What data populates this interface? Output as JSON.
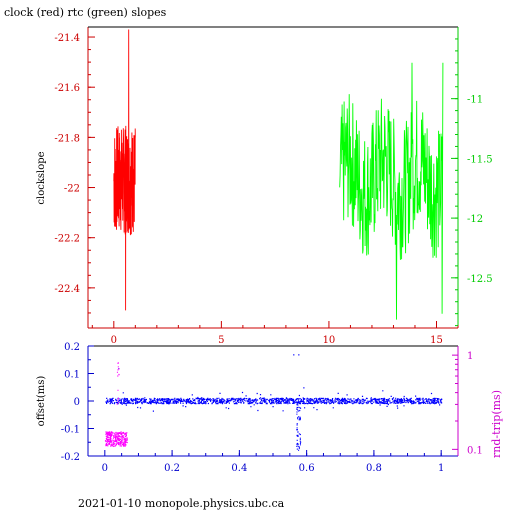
{
  "title": "clock (red) rtc (green) slopes",
  "footer": "2021-01-10  monopole.physics.ubc.ca",
  "chart_data": [
    {
      "type": "line",
      "ylabel": "clockslope",
      "xlim": [
        -1.2,
        16
      ],
      "x_ticks": [
        "0",
        "5",
        "10",
        "15"
      ],
      "x_tick_values": [
        0,
        5,
        10,
        15
      ],
      "y_left": {
        "lim": [
          -22.56,
          -21.36
        ],
        "ticks": [
          "-21.4",
          "-21.6",
          "-21.8",
          "-22",
          "-22.2",
          "-22.4"
        ],
        "tick_values": [
          -21.4,
          -21.6,
          -21.8,
          -22,
          -22.2,
          -22.4
        ],
        "color": "#cc0000"
      },
      "y_right": {
        "lim": [
          -12.92,
          -10.4
        ],
        "ticks": [
          "-11",
          "-11.5",
          "-12",
          "-12.5"
        ],
        "tick_values": [
          -11,
          -11.5,
          -12,
          -12.5
        ],
        "color": "#00cc00"
      },
      "series": [
        {
          "axis": "left",
          "color": "#ff0000",
          "x_range": [
            0.0,
            1.0
          ],
          "y_center": -21.97,
          "y_spread": 0.22,
          "y_min": -22.49,
          "y_max": -21.37
        },
        {
          "axis": "right",
          "color": "#00ff00",
          "x_range": [
            10.5,
            15.3
          ],
          "y_center": -11.65,
          "y_spread": 0.55,
          "y_min": -12.85,
          "y_max": -10.7
        }
      ]
    },
    {
      "type": "scatter",
      "ylabel": "offset(ms)",
      "y2label": "rnd-trip(ms)",
      "xlim": [
        -0.05,
        1.05
      ],
      "x_ticks": [
        "0",
        "0.2",
        "0.4",
        "0.6",
        "0.8",
        "1"
      ],
      "x_tick_values": [
        0,
        0.2,
        0.4,
        0.6,
        0.8,
        1
      ],
      "y_left": {
        "lim": [
          -0.2,
          0.2
        ],
        "ticks": [
          "0.2",
          "0.1",
          "0",
          "-0.1",
          "-0.2"
        ],
        "tick_values": [
          0.2,
          0.1,
          0,
          -0.1,
          -0.2
        ],
        "color": "#0000cc"
      },
      "y_right": {
        "lim": [
          0.085,
          1.25
        ],
        "scale": "log",
        "ticks": [
          "1",
          "0.1"
        ],
        "tick_values": [
          1,
          0.1
        ],
        "color": "#cc00cc"
      },
      "series": [
        {
          "axis": "left",
          "color": "#0000ff",
          "x_range": [
            0.0,
            1.0
          ],
          "y_center": 0.0,
          "y_spread": 0.01,
          "dip_at": 0.575,
          "dip_min": -0.18
        },
        {
          "axis": "right",
          "color": "#ff00ff",
          "x_range": [
            0.0,
            0.065
          ],
          "y_center": 0.13,
          "y_spread": 0.02,
          "y_max": 0.9
        }
      ]
    }
  ]
}
